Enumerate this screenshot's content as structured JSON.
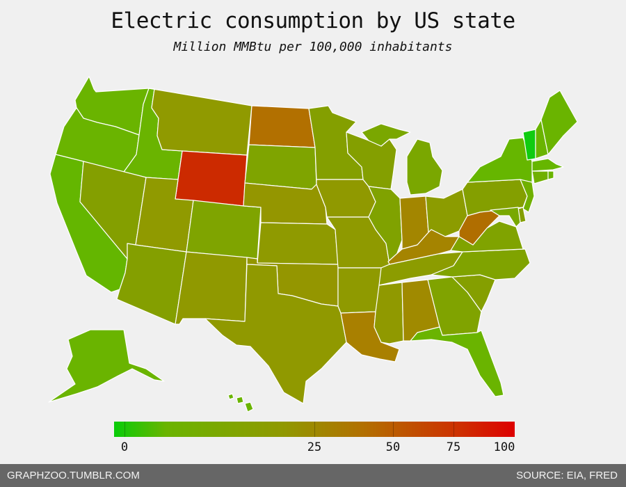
{
  "title": "Electric consumption by US state",
  "subtitle": "Million MMBtu per 100,000 inhabitants",
  "legend": {
    "ticks": [
      "0",
      "25",
      "50",
      "75",
      "100"
    ],
    "colors": [
      "#08cc08",
      "#6ab400",
      "#909900",
      "#b27000",
      "#cd3000",
      "#dd0000"
    ]
  },
  "footer": {
    "left": "GRAPHZOO.TUMBLR.COM",
    "right": "SOURCE: EIA, FRED"
  },
  "states": [
    {
      "id": "WA",
      "color": "#6ab400"
    },
    {
      "id": "OR",
      "color": "#6ab400"
    },
    {
      "id": "CA",
      "color": "#64b600"
    },
    {
      "id": "ID",
      "color": "#6ab400"
    },
    {
      "id": "NV",
      "color": "#849f00"
    },
    {
      "id": "MT",
      "color": "#909a00"
    },
    {
      "id": "WY",
      "color": "#cc2a00"
    },
    {
      "id": "UT",
      "color": "#909a00"
    },
    {
      "id": "CO",
      "color": "#7fa400"
    },
    {
      "id": "AZ",
      "color": "#849f00"
    },
    {
      "id": "NM",
      "color": "#909900"
    },
    {
      "id": "ND",
      "color": "#b27000"
    },
    {
      "id": "SD",
      "color": "#7fa400"
    },
    {
      "id": "NE",
      "color": "#949600"
    },
    {
      "id": "KS",
      "color": "#8f9a00"
    },
    {
      "id": "OK",
      "color": "#949600"
    },
    {
      "id": "TX",
      "color": "#909900"
    },
    {
      "id": "MN",
      "color": "#849f00"
    },
    {
      "id": "IA",
      "color": "#909900"
    },
    {
      "id": "MO",
      "color": "#8f9a00"
    },
    {
      "id": "AR",
      "color": "#8f9a00"
    },
    {
      "id": "LA",
      "color": "#a98000"
    },
    {
      "id": "WI",
      "color": "#849f00"
    },
    {
      "id": "IL",
      "color": "#80a200"
    },
    {
      "id": "MI",
      "color": "#7aa700"
    },
    {
      "id": "IN",
      "color": "#a38600"
    },
    {
      "id": "OH",
      "color": "#8c9c00"
    },
    {
      "id": "KY",
      "color": "#a58400"
    },
    {
      "id": "TN",
      "color": "#8c9c00"
    },
    {
      "id": "MS",
      "color": "#909900"
    },
    {
      "id": "AL",
      "color": "#a08a00"
    },
    {
      "id": "GA",
      "color": "#80a300"
    },
    {
      "id": "FL",
      "color": "#6ab400"
    },
    {
      "id": "SC",
      "color": "#859f00"
    },
    {
      "id": "NC",
      "color": "#80a300"
    },
    {
      "id": "VA",
      "color": "#80a300"
    },
    {
      "id": "WV",
      "color": "#b06e00"
    },
    {
      "id": "PA",
      "color": "#849f00"
    },
    {
      "id": "NY",
      "color": "#66b600"
    },
    {
      "id": "VT",
      "color": "#10cc10"
    },
    {
      "id": "NH",
      "color": "#6ab400"
    },
    {
      "id": "ME",
      "color": "#6ab400"
    },
    {
      "id": "MA",
      "color": "#66b600"
    },
    {
      "id": "CT",
      "color": "#70b000"
    },
    {
      "id": "RI",
      "color": "#6ab400"
    },
    {
      "id": "NJ",
      "color": "#70b000"
    },
    {
      "id": "DE",
      "color": "#849f00"
    },
    {
      "id": "MD",
      "color": "#78a800"
    },
    {
      "id": "AK",
      "color": "#6ab400"
    },
    {
      "id": "HI",
      "color": "#6ab400"
    }
  ]
}
